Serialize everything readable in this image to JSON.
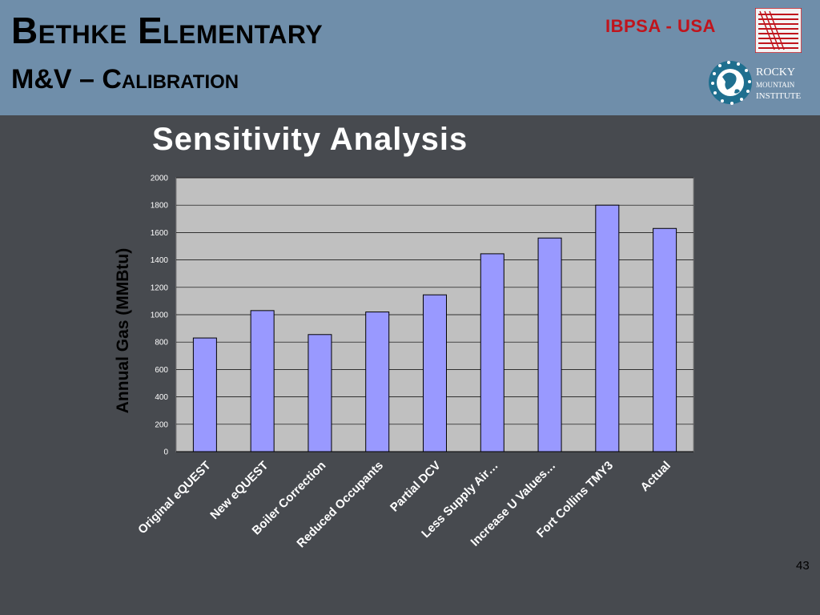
{
  "header": {
    "title": "Bethke Elementary",
    "subtitle": "M&V – Calibration",
    "org_label": "IBPSA - USA",
    "rmi_logo_text": [
      "ROCKY",
      "MOUNTAIN",
      "INSTITUTE"
    ]
  },
  "slide_number": "43",
  "colors": {
    "header_bg": "#6f8eaa",
    "page_bg": "#474a4f",
    "bar_fill": "#9999ff",
    "plot_bg": "#c0c0c0",
    "org_red": "#c0141c"
  },
  "chart_data": {
    "type": "bar",
    "title": "Sensitivity Analysis",
    "ylabel": "Annual Gas (MMBtu)",
    "xlabel": "",
    "ylim": [
      0,
      2000
    ],
    "yticks": [
      0,
      200,
      400,
      600,
      800,
      1000,
      1200,
      1400,
      1600,
      1800,
      2000
    ],
    "grid": true,
    "categories": [
      "Original eQUEST",
      "New eQUEST",
      "Boiler Correction",
      "Reduced Occupants",
      "Partial DCV",
      "Less Supply Air…",
      "Increase U Values…",
      "Fort Collins TMY3",
      "Actual"
    ],
    "values": [
      830,
      1030,
      855,
      1020,
      1145,
      1445,
      1560,
      1800,
      1630
    ]
  }
}
